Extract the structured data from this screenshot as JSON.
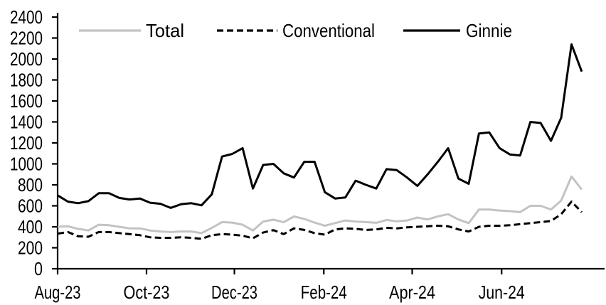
{
  "chart_data": {
    "type": "line",
    "title": "",
    "xlabel": "",
    "ylabel": "",
    "frequency": "weekly",
    "x_axis": {
      "tick_labels": [
        "Aug-23",
        "Oct-23",
        "Dec-23",
        "Feb-24",
        "Apr-24",
        "Jun-24"
      ],
      "tick_week_positions": [
        0,
        8.65,
        17.2,
        25.9,
        34.5,
        43.2
      ]
    },
    "y_axis": {
      "min": 0,
      "max": 2400,
      "step": 200,
      "tick_labels": [
        "0",
        "200",
        "400",
        "600",
        "800",
        "1000",
        "1200",
        "1400",
        "1600",
        "1800",
        "2000",
        "2200",
        "2400"
      ]
    },
    "legend": {
      "position": "top",
      "entries": [
        {
          "label": "Total",
          "style": "solid",
          "color": "#c3c3c3"
        },
        {
          "label": "Conventional",
          "style": "dashed",
          "color": "#000000"
        },
        {
          "label": "Ginnie",
          "style": "solid",
          "color": "#000000"
        }
      ]
    },
    "series": [
      {
        "name": "Total",
        "color": "#c3c3c3",
        "dash": "solid",
        "values": [
          400,
          405,
          380,
          365,
          420,
          415,
          400,
          385,
          385,
          365,
          355,
          350,
          355,
          355,
          340,
          390,
          445,
          440,
          420,
          365,
          450,
          468,
          445,
          498,
          475,
          440,
          410,
          435,
          460,
          450,
          445,
          438,
          465,
          452,
          460,
          488,
          470,
          500,
          520,
          470,
          435,
          565,
          565,
          555,
          550,
          540,
          600,
          600,
          565,
          650,
          880,
          755
        ]
      },
      {
        "name": "Conventional",
        "color": "#000000",
        "dash": "dashed",
        "values": [
          335,
          350,
          310,
          305,
          350,
          350,
          340,
          330,
          320,
          300,
          295,
          295,
          300,
          295,
          285,
          320,
          330,
          325,
          315,
          290,
          345,
          368,
          330,
          385,
          370,
          340,
          325,
          375,
          385,
          380,
          370,
          375,
          390,
          385,
          395,
          400,
          405,
          410,
          405,
          375,
          355,
          400,
          410,
          410,
          415,
          425,
          435,
          445,
          455,
          520,
          640,
          540
        ]
      },
      {
        "name": "Ginnie",
        "color": "#000000",
        "dash": "solid",
        "values": [
          700,
          640,
          625,
          645,
          720,
          720,
          675,
          660,
          670,
          630,
          620,
          580,
          615,
          625,
          605,
          710,
          1070,
          1095,
          1150,
          765,
          990,
          1000,
          910,
          870,
          1020,
          1020,
          730,
          670,
          680,
          840,
          800,
          765,
          950,
          940,
          870,
          790,
          900,
          1020,
          1150,
          860,
          810,
          1290,
          1300,
          1150,
          1090,
          1080,
          1400,
          1390,
          1220,
          1440,
          2140,
          1880
        ]
      }
    ]
  }
}
